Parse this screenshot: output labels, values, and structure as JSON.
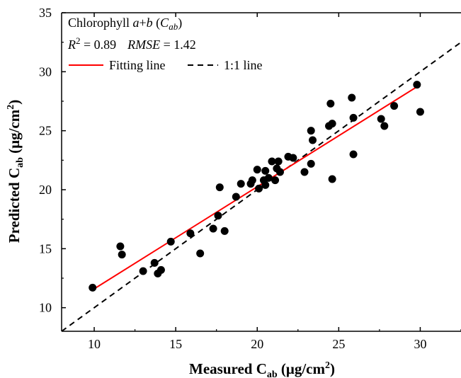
{
  "chart_data": {
    "type": "scatter",
    "xlabel": "Measured C",
    "xlabel_sub": "ab",
    "xlabel_unit": " (μg/cm",
    "xlabel_unit_sup": "2",
    "xlabel_unit_end": ")",
    "ylabel": "Predicted C",
    "ylabel_sub": "ab",
    "ylabel_unit": " (μg/cm",
    "ylabel_unit_sup": "2",
    "ylabel_unit_end": ")",
    "xlim": [
      8,
      32.5
    ],
    "ylim": [
      8,
      35
    ],
    "xticks": [
      10,
      15,
      20,
      25,
      30
    ],
    "yticks": [
      10,
      15,
      20,
      25,
      30,
      35
    ],
    "annotation": {
      "line1_prefix": "Chlorophyll ",
      "line1_italic_a": "a",
      "line1_plus": "+",
      "line1_italic_b": "b",
      "line1_paren_open": " (",
      "line1_italic_C": "C",
      "line1_italic_sub": "ab",
      "line1_paren_close": ")",
      "r2_label": "R",
      "r2_sup": "2",
      "r2_value": " = 0.89",
      "rmse_label": "RMSE",
      "rmse_value": " = 1.42"
    },
    "legend": [
      {
        "label": "Fitting line",
        "color": "#ff0000",
        "style": "solid"
      },
      {
        "label": "1:1 line",
        "color": "#000000",
        "style": "dashed"
      }
    ],
    "fit_line": {
      "x": [
        10,
        30
      ],
      "y": [
        11.6,
        28.9
      ]
    },
    "identity_line": {
      "x": [
        8,
        32.5
      ],
      "y": [
        8,
        32.5
      ]
    },
    "points": [
      [
        9.9,
        11.7
      ],
      [
        11.6,
        15.2
      ],
      [
        11.7,
        14.5
      ],
      [
        13.0,
        13.1
      ],
      [
        13.7,
        13.8
      ],
      [
        13.9,
        12.9
      ],
      [
        14.1,
        13.2
      ],
      [
        14.7,
        15.6
      ],
      [
        15.9,
        16.3
      ],
      [
        16.5,
        14.6
      ],
      [
        17.3,
        16.7
      ],
      [
        17.6,
        17.8
      ],
      [
        17.7,
        20.2
      ],
      [
        18.0,
        16.5
      ],
      [
        18.7,
        19.4
      ],
      [
        19.0,
        20.5
      ],
      [
        19.6,
        20.5
      ],
      [
        19.7,
        20.8
      ],
      [
        20.0,
        21.7
      ],
      [
        20.1,
        20.1
      ],
      [
        20.4,
        20.8
      ],
      [
        20.5,
        20.4
      ],
      [
        20.5,
        21.6
      ],
      [
        20.7,
        21.0
      ],
      [
        20.9,
        22.4
      ],
      [
        21.1,
        20.8
      ],
      [
        21.2,
        21.8
      ],
      [
        21.3,
        22.4
      ],
      [
        21.4,
        21.5
      ],
      [
        21.9,
        22.8
      ],
      [
        22.2,
        22.7
      ],
      [
        22.9,
        21.5
      ],
      [
        23.3,
        22.2
      ],
      [
        23.3,
        25.0
      ],
      [
        23.4,
        24.2
      ],
      [
        24.4,
        25.4
      ],
      [
        24.5,
        27.3
      ],
      [
        24.6,
        25.6
      ],
      [
        24.6,
        20.9
      ],
      [
        25.8,
        27.8
      ],
      [
        25.9,
        26.1
      ],
      [
        25.9,
        23.0
      ],
      [
        27.6,
        26.0
      ],
      [
        27.8,
        25.4
      ],
      [
        28.4,
        27.1
      ],
      [
        29.8,
        28.9
      ],
      [
        30.0,
        26.6
      ]
    ]
  }
}
